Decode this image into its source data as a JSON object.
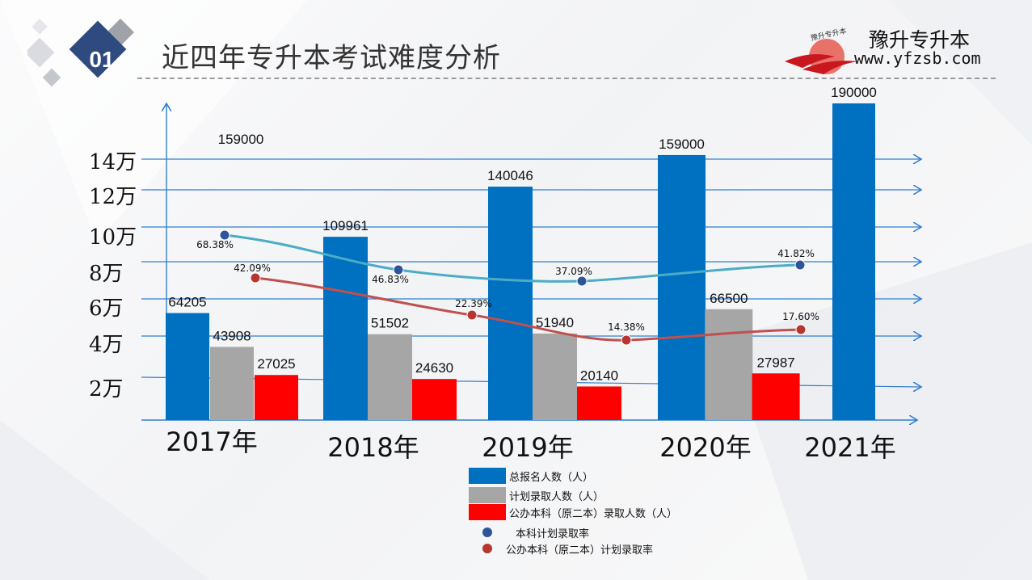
{
  "page": {
    "badge": "01",
    "title": "近四年专升本考试难度分析",
    "logo_name": "豫升专升本",
    "logo_url": "www.yfzsb.com",
    "logo_arc_text": "豫升专升本"
  },
  "chart_data": {
    "type": "bar",
    "categories": [
      "2017年",
      "2018年",
      "2019年",
      "2020年",
      "2021年"
    ],
    "y_tick_labels": [
      "2万",
      "4万",
      "6万",
      "8万",
      "10万",
      "12万",
      "14万"
    ],
    "series": [
      {
        "name": "总报名人数（人）",
        "color": "#0070c0",
        "values": [
          64205,
          109961,
          140046,
          159000,
          190000
        ]
      },
      {
        "name": "计划录取人数（人）",
        "color": "#a6a6a6",
        "values": [
          43908,
          51502,
          51940,
          66500,
          null
        ]
      },
      {
        "name": "公办本科（原二本）录取人数（人）",
        "color": "#ff0000",
        "values": [
          27025,
          24630,
          20140,
          27987,
          null
        ]
      }
    ],
    "lines": [
      {
        "name": "本科计划录取率",
        "color": "#4bacc6",
        "marker": "#2e5597",
        "values": [
          "68.38%",
          "46.83%",
          "37.09%",
          "41.82%"
        ]
      },
      {
        "name": "公办本科（原二本）计划录取率",
        "color": "#c0504d",
        "marker": "#b83530",
        "values": [
          "42.09%",
          "22.39%",
          "14.38%",
          "17.60%"
        ]
      }
    ],
    "extra_annotations": [
      "159000"
    ],
    "legend_position": "bottom-center"
  }
}
